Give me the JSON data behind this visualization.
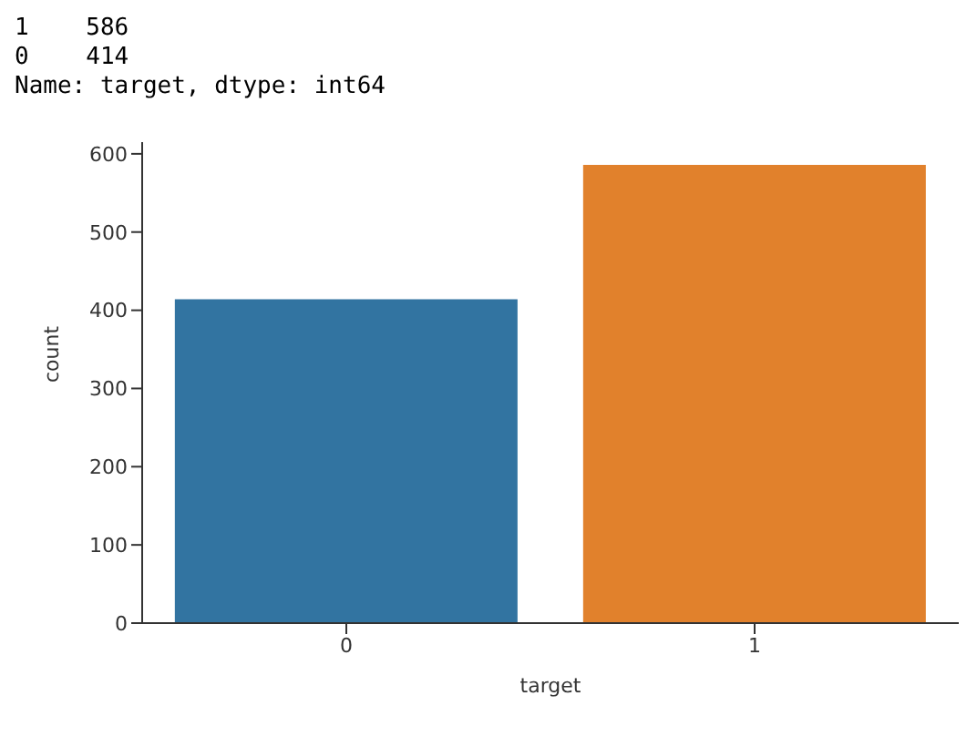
{
  "chart_data": {
    "type": "bar",
    "xlabel": "target",
    "ylabel": "count",
    "categories": [
      "0",
      "1"
    ],
    "values": [
      414,
      586
    ],
    "colors": [
      "#3274a1",
      "#e1812c"
    ],
    "ylim": [
      0,
      615
    ],
    "yticks": [
      0,
      100,
      200,
      300,
      400,
      500,
      600
    ],
    "annotations": [
      "1    586",
      "0    414",
      "Name: target, dtype: int64"
    ]
  }
}
